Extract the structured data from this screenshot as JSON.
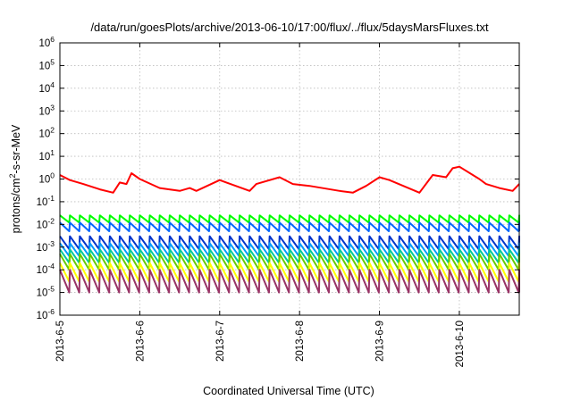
{
  "chart_data": {
    "type": "line",
    "title": "/data/run/goesPlots/archive/2013-06-10/17:00/flux/../flux/5daysMarsFluxes.txt",
    "xlabel": "Coordinated Universal Time (UTC)",
    "ylabel": "protons/cm2-s-sr-MeV",
    "y_scale": "log",
    "ylim": [
      1e-06,
      1000000.0
    ],
    "y_ticks": [
      {
        "base": "10",
        "exp": "-6"
      },
      {
        "base": "10",
        "exp": "-5"
      },
      {
        "base": "10",
        "exp": "-4"
      },
      {
        "base": "10",
        "exp": "-3"
      },
      {
        "base": "10",
        "exp": "-2"
      },
      {
        "base": "10",
        "exp": "-1"
      },
      {
        "base": "10",
        "exp": "0"
      },
      {
        "base": "10",
        "exp": "1"
      },
      {
        "base": "10",
        "exp": "2"
      },
      {
        "base": "10",
        "exp": "3"
      },
      {
        "base": "10",
        "exp": "4"
      },
      {
        "base": "10",
        "exp": "5"
      },
      {
        "base": "10",
        "exp": "6"
      }
    ],
    "xlim": [
      "2013-06-05",
      "2013-06-10T18:00"
    ],
    "x_ticks": [
      "2013-6-5",
      "2013-6-6",
      "2013-6-7",
      "2013-6-8",
      "2013-6-9",
      "2013-6-10"
    ],
    "grid": true,
    "legend": "none",
    "series": [
      {
        "color": "#ff0000",
        "x": [
          "2013-06-05T00:00",
          "2013-06-05T03:00",
          "2013-06-05T07:00",
          "2013-06-05T12:00",
          "2013-06-05T16:00",
          "2013-06-05T18:00",
          "2013-06-05T20:00",
          "2013-06-05T21:30",
          "2013-06-06T00:00",
          "2013-06-06T06:00",
          "2013-06-06T12:00",
          "2013-06-06T15:00",
          "2013-06-06T17:00",
          "2013-06-07T00:00",
          "2013-06-07T09:00",
          "2013-06-07T11:00",
          "2013-06-07T18:00",
          "2013-06-07T22:00",
          "2013-06-08T03:00",
          "2013-06-08T12:00",
          "2013-06-08T16:00",
          "2013-06-08T20:00",
          "2013-06-09T00:00",
          "2013-06-09T03:00",
          "2013-06-09T12:00",
          "2013-06-09T16:00",
          "2013-06-09T20:00",
          "2013-06-09T22:00",
          "2013-06-10T00:00",
          "2013-06-10T06:00",
          "2013-06-10T08:00",
          "2013-06-10T12:00",
          "2013-06-10T16:00",
          "2013-06-10T18:00"
        ],
        "y": [
          1.5,
          0.9,
          0.6,
          0.35,
          0.25,
          0.7,
          0.6,
          1.8,
          1.0,
          0.4,
          0.3,
          0.4,
          0.3,
          0.9,
          0.3,
          0.6,
          1.2,
          0.6,
          0.5,
          0.3,
          0.25,
          0.5,
          1.2,
          0.9,
          0.25,
          1.5,
          1.2,
          3.0,
          3.5,
          1.0,
          0.6,
          0.4,
          0.3,
          0.6
        ]
      },
      {
        "color": "#00ff00",
        "period_hours": 3,
        "y_peak": 0.025,
        "y_trough": 0.012
      },
      {
        "color": "#0066ff",
        "period_hours": 3,
        "y_peak": 0.012,
        "y_trough": 0.005
      },
      {
        "color": "#0033cc",
        "period_hours": 3,
        "y_peak": 0.003,
        "y_trough": 0.0008
      },
      {
        "color": "#0099ff",
        "period_hours": 3,
        "y_peak": 0.0015,
        "y_trough": 0.0004
      },
      {
        "color": "#00cc99",
        "period_hours": 3,
        "y_peak": 0.0008,
        "y_trough": 0.0002
      },
      {
        "color": "#66cc00",
        "period_hours": 3,
        "y_peak": 0.0005,
        "y_trough": 0.0001
      },
      {
        "color": "#ffff00",
        "period_hours": 3,
        "y_peak": 0.0002,
        "y_trough": 3e-05
      },
      {
        "color": "#993366",
        "period_hours": 3,
        "y_peak": 0.0001,
        "y_trough": 1e-05
      }
    ]
  }
}
